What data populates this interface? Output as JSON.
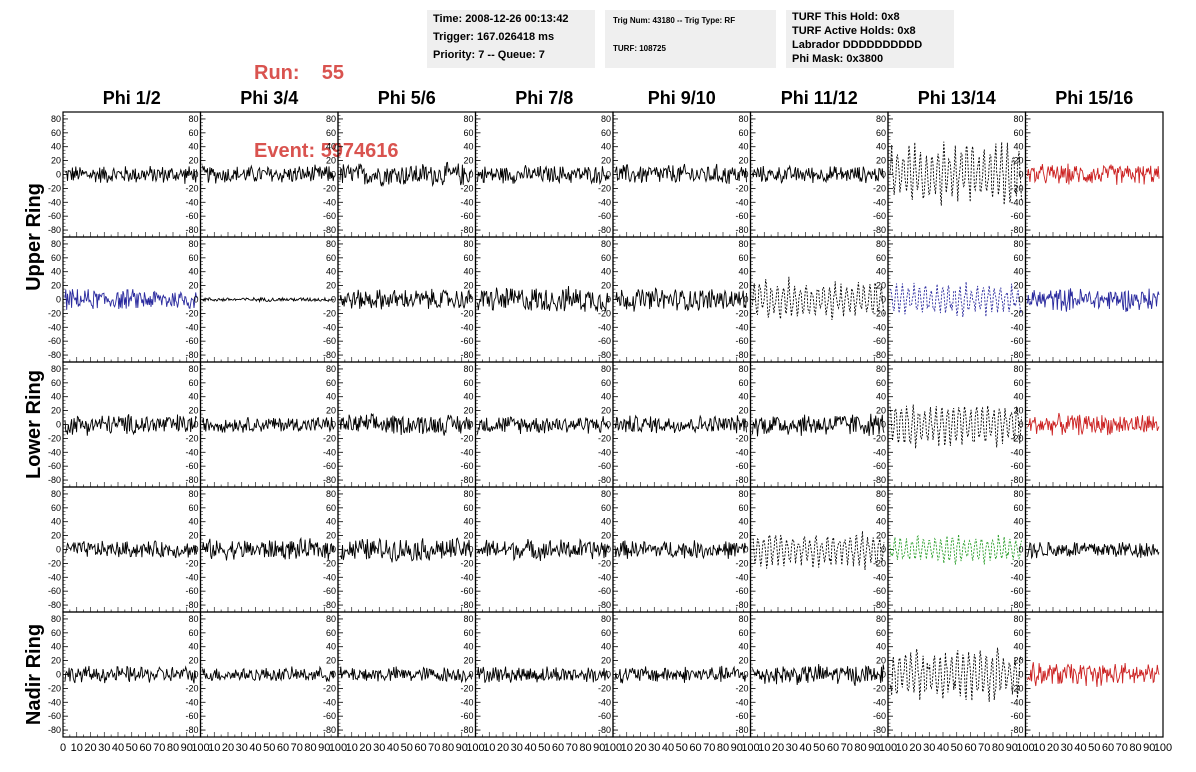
{
  "header": {
    "run_label": "Run:",
    "run_value": "55",
    "event_label": "Event:",
    "event_value": "5974616",
    "box1": {
      "time": "Time: 2008-12-26 00:13:42",
      "trigger": "Trigger: 167.026418 ms",
      "priority": "Priority: 7 -- Queue: 7"
    },
    "box2": {
      "trig": "Trig Num: 43180 -- Trig Type: RF",
      "turf": "TURF: 108725"
    },
    "box3": {
      "this_hold": "TURF This Hold: 0x8",
      "active_holds": "TURF Active Holds: 0x8",
      "labrador": "Labrador DDDDDDDDDD",
      "phi_mask": "Phi Mask: 0x3800"
    }
  },
  "chart_data": {
    "type": "line",
    "column_titles": [
      "Phi 1/2",
      "Phi 3/4",
      "Phi 5/6",
      "Phi 7/8",
      "Phi 9/10",
      "Phi 11/12",
      "Phi 13/14",
      "Phi 15/16"
    ],
    "row_titles": [
      "Upper Ring",
      "Lower Ring",
      "Nadir Ring"
    ],
    "ylim": [
      -90,
      90
    ],
    "yticks": [
      -80,
      -60,
      -40,
      -20,
      0,
      20,
      40,
      60,
      80
    ],
    "xlim": [
      0,
      100
    ],
    "xtick_labels": [
      "0",
      "10",
      "20",
      "30",
      "40",
      "50",
      "60",
      "70",
      "80",
      "90",
      "100"
    ],
    "panel_rows": 5,
    "panel_cols": 8,
    "colors": {
      "black": "#000000",
      "red": "#cc2222",
      "blue": "#2a2a9e",
      "green": "#2a9e2a"
    },
    "panels": [
      [
        {
          "color": "black",
          "amp": 14,
          "style": "solid"
        },
        {
          "color": "black",
          "amp": 14,
          "style": "solid"
        },
        {
          "color": "black",
          "amp": 18,
          "style": "solid"
        },
        {
          "color": "black",
          "amp": 14,
          "style": "solid"
        },
        {
          "color": "black",
          "amp": 16,
          "style": "solid"
        },
        {
          "color": "black",
          "amp": 13,
          "style": "solid"
        },
        {
          "color": "black",
          "amp": 38,
          "style": "dotted"
        },
        {
          "color": "red",
          "amp": 16,
          "style": "solid"
        }
      ],
      [
        {
          "color": "blue",
          "amp": 16,
          "style": "solid"
        },
        {
          "color": "black",
          "amp": 3,
          "style": "solid"
        },
        {
          "color": "black",
          "amp": 16,
          "style": "solid"
        },
        {
          "color": "black",
          "amp": 20,
          "style": "solid"
        },
        {
          "color": "black",
          "amp": 18,
          "style": "solid"
        },
        {
          "color": "black",
          "amp": 24,
          "style": "dotted"
        },
        {
          "color": "blue",
          "amp": 20,
          "style": "dotted"
        },
        {
          "color": "blue",
          "amp": 18,
          "style": "solid"
        }
      ],
      [
        {
          "color": "black",
          "amp": 16,
          "style": "solid"
        },
        {
          "color": "black",
          "amp": 12,
          "style": "solid"
        },
        {
          "color": "black",
          "amp": 16,
          "style": "solid"
        },
        {
          "color": "black",
          "amp": 14,
          "style": "solid"
        },
        {
          "color": "black",
          "amp": 14,
          "style": "solid"
        },
        {
          "color": "black",
          "amp": 18,
          "style": "solid"
        },
        {
          "color": "black",
          "amp": 28,
          "style": "dotted"
        },
        {
          "color": "red",
          "amp": 16,
          "style": "solid"
        }
      ],
      [
        {
          "color": "black",
          "amp": 13,
          "style": "solid"
        },
        {
          "color": "black",
          "amp": 16,
          "style": "solid"
        },
        {
          "color": "black",
          "amp": 18,
          "style": "solid"
        },
        {
          "color": "black",
          "amp": 16,
          "style": "solid"
        },
        {
          "color": "black",
          "amp": 14,
          "style": "solid"
        },
        {
          "color": "black",
          "amp": 22,
          "style": "dotted"
        },
        {
          "color": "green",
          "amp": 18,
          "style": "dotted"
        },
        {
          "color": "black",
          "amp": 14,
          "style": "solid"
        }
      ],
      [
        {
          "color": "black",
          "amp": 13,
          "style": "solid"
        },
        {
          "color": "black",
          "amp": 11,
          "style": "solid"
        },
        {
          "color": "black",
          "amp": 12,
          "style": "solid"
        },
        {
          "color": "black",
          "amp": 13,
          "style": "solid"
        },
        {
          "color": "black",
          "amp": 13,
          "style": "solid"
        },
        {
          "color": "black",
          "amp": 16,
          "style": "solid"
        },
        {
          "color": "black",
          "amp": 34,
          "style": "dotted"
        },
        {
          "color": "red",
          "amp": 18,
          "style": "solid"
        }
      ]
    ]
  }
}
